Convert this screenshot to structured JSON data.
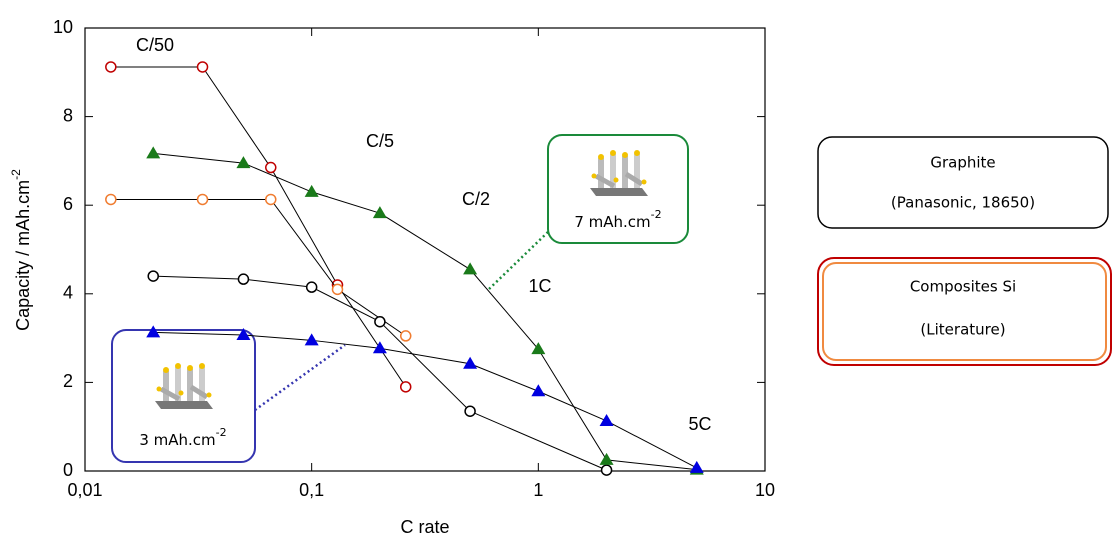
{
  "chart_data": {
    "type": "scatter",
    "xlabel": "C rate",
    "ylabel": {
      "text": "Capacity / mAh.cm",
      "sup": "-2"
    },
    "xscale": "log",
    "xlim": [
      0.01,
      10
    ],
    "ylim": [
      0,
      10
    ],
    "xticks": [
      {
        "value": 0.01,
        "label": "0,01"
      },
      {
        "value": 0.1,
        "label": "0,1"
      },
      1,
      10
    ],
    "yticks": [
      0,
      2,
      4,
      6,
      8,
      10
    ],
    "grid": false,
    "line_color": "#000000",
    "series": [
      {
        "color": "#c00000",
        "marker": "circle-open",
        "x": [
          0.013,
          0.033,
          0.066,
          0.13,
          0.26
        ],
        "values": [
          9.12,
          9.12,
          6.85,
          4.2,
          1.9
        ]
      },
      {
        "color": "#f07c30",
        "marker": "circle-open",
        "x": [
          0.013,
          0.033,
          0.066,
          0.13,
          0.26
        ],
        "values": [
          6.13,
          6.13,
          6.13,
          4.1,
          3.05
        ]
      },
      {
        "color": "#000000",
        "marker": "circle-open",
        "x": [
          0.02,
          0.05,
          0.1,
          0.2,
          0.5,
          2
        ],
        "values": [
          4.4,
          4.33,
          4.15,
          3.37,
          1.35,
          0.02
        ]
      },
      {
        "color": "#1a7a1a",
        "marker": "triangle",
        "x": [
          0.02,
          0.05,
          0.1,
          0.2,
          0.5,
          1,
          2,
          5
        ],
        "values": [
          7.17,
          6.95,
          6.3,
          5.82,
          4.55,
          2.75,
          0.25,
          0.03
        ]
      },
      {
        "color": "#0000e0",
        "marker": "triangle",
        "x": [
          0.02,
          0.05,
          0.1,
          0.2,
          0.5,
          1,
          2,
          5
        ],
        "values": [
          3.13,
          3.07,
          2.95,
          2.77,
          2.42,
          1.8,
          1.13,
          0.07
        ]
      }
    ],
    "annotations": [
      "C/50",
      "C/5",
      "C/2",
      "1C",
      "5C"
    ]
  },
  "callouts": [
    {
      "text": "7 mAh.cm",
      "sup": "-2",
      "color": "#1a8a3a"
    },
    {
      "text": "3 mAh.cm",
      "sup": "-2",
      "color": "#3535b0"
    }
  ],
  "legend_boxes": [
    {
      "lines": [
        "Graphite",
        "(Panasonic, 18650)"
      ]
    },
    {
      "lines": [
        "Composites Si",
        "(Literature)"
      ]
    }
  ]
}
